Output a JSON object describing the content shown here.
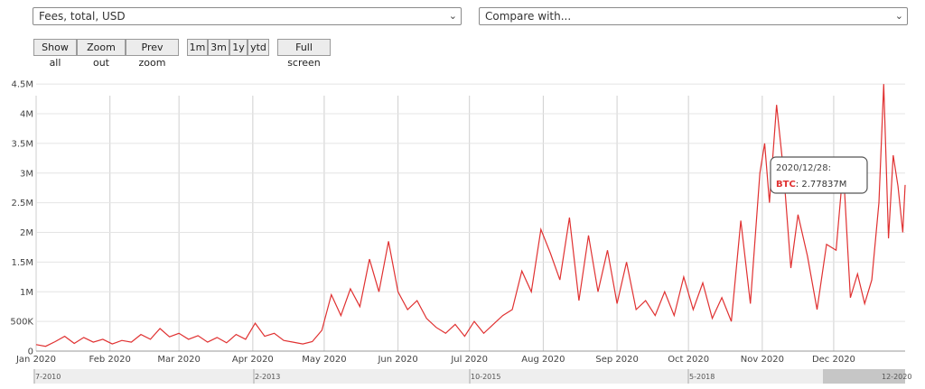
{
  "controls": {
    "metric_select": "Fees, total, USD",
    "compare_select": "Compare with...",
    "buttons": [
      "Show all",
      "Zoom out",
      "Prev zoom",
      "1m",
      "3m",
      "1y",
      "ytd",
      "Full screen"
    ]
  },
  "chart_data": {
    "type": "line",
    "title": "",
    "xlabel": "",
    "ylabel": "",
    "x_start": "2020-01-01",
    "x_end": "2020-12-31",
    "x_ticks": [
      "Jan 2020",
      "Feb 2020",
      "Mar 2020",
      "Apr 2020",
      "May 2020",
      "Jun 2020",
      "Jul 2020",
      "Aug 2020",
      "Sep 2020",
      "Oct 2020",
      "Nov 2020",
      "Dec 2020"
    ],
    "y_ticks": [
      "0",
      "500K",
      "1M",
      "1.5M",
      "2M",
      "2.5M",
      "3M",
      "3.5M",
      "4M",
      "4.5M"
    ],
    "ylim": [
      0,
      4700000
    ],
    "grid": true,
    "series": [
      {
        "name": "BTC",
        "color": "#e03131",
        "points": [
          [
            "2020-01-01",
            110000
          ],
          [
            "2020-01-05",
            80000
          ],
          [
            "2020-01-09",
            160000
          ],
          [
            "2020-01-13",
            250000
          ],
          [
            "2020-01-17",
            130000
          ],
          [
            "2020-01-21",
            230000
          ],
          [
            "2020-01-25",
            150000
          ],
          [
            "2020-01-29",
            200000
          ],
          [
            "2020-02-02",
            120000
          ],
          [
            "2020-02-06",
            180000
          ],
          [
            "2020-02-10",
            150000
          ],
          [
            "2020-02-14",
            280000
          ],
          [
            "2020-02-18",
            200000
          ],
          [
            "2020-02-22",
            380000
          ],
          [
            "2020-02-26",
            240000
          ],
          [
            "2020-03-01",
            300000
          ],
          [
            "2020-03-05",
            200000
          ],
          [
            "2020-03-09",
            260000
          ],
          [
            "2020-03-13",
            150000
          ],
          [
            "2020-03-17",
            230000
          ],
          [
            "2020-03-21",
            140000
          ],
          [
            "2020-03-25",
            280000
          ],
          [
            "2020-03-29",
            200000
          ],
          [
            "2020-04-02",
            470000
          ],
          [
            "2020-04-06",
            250000
          ],
          [
            "2020-04-10",
            300000
          ],
          [
            "2020-04-14",
            180000
          ],
          [
            "2020-04-18",
            150000
          ],
          [
            "2020-04-22",
            120000
          ],
          [
            "2020-04-26",
            160000
          ],
          [
            "2020-04-30",
            350000
          ],
          [
            "2020-05-04",
            950000
          ],
          [
            "2020-05-08",
            600000
          ],
          [
            "2020-05-12",
            1050000
          ],
          [
            "2020-05-16",
            750000
          ],
          [
            "2020-05-20",
            1550000
          ],
          [
            "2020-05-24",
            1000000
          ],
          [
            "2020-05-28",
            1850000
          ],
          [
            "2020-06-01",
            1000000
          ],
          [
            "2020-06-05",
            700000
          ],
          [
            "2020-06-09",
            850000
          ],
          [
            "2020-06-13",
            550000
          ],
          [
            "2020-06-17",
            400000
          ],
          [
            "2020-06-21",
            300000
          ],
          [
            "2020-06-25",
            450000
          ],
          [
            "2020-06-29",
            250000
          ],
          [
            "2020-07-03",
            500000
          ],
          [
            "2020-07-07",
            300000
          ],
          [
            "2020-07-11",
            450000
          ],
          [
            "2020-07-15",
            600000
          ],
          [
            "2020-07-19",
            700000
          ],
          [
            "2020-07-23",
            1350000
          ],
          [
            "2020-07-27",
            1000000
          ],
          [
            "2020-07-31",
            2050000
          ],
          [
            "2020-08-04",
            1650000
          ],
          [
            "2020-08-08",
            1200000
          ],
          [
            "2020-08-12",
            2250000
          ],
          [
            "2020-08-16",
            850000
          ],
          [
            "2020-08-20",
            1950000
          ],
          [
            "2020-08-24",
            1000000
          ],
          [
            "2020-08-28",
            1700000
          ],
          [
            "2020-09-01",
            800000
          ],
          [
            "2020-09-05",
            1500000
          ],
          [
            "2020-09-09",
            700000
          ],
          [
            "2020-09-13",
            850000
          ],
          [
            "2020-09-17",
            600000
          ],
          [
            "2020-09-21",
            1000000
          ],
          [
            "2020-09-25",
            600000
          ],
          [
            "2020-09-29",
            1250000
          ],
          [
            "2020-10-03",
            700000
          ],
          [
            "2020-10-07",
            1150000
          ],
          [
            "2020-10-11",
            550000
          ],
          [
            "2020-10-15",
            900000
          ],
          [
            "2020-10-19",
            500000
          ],
          [
            "2020-10-23",
            2200000
          ],
          [
            "2020-10-27",
            800000
          ],
          [
            "2020-10-31",
            3000000
          ],
          [
            "2020-11-02",
            3500000
          ],
          [
            "2020-11-04",
            2500000
          ],
          [
            "2020-11-07",
            4150000
          ],
          [
            "2020-11-10",
            3000000
          ],
          [
            "2020-11-13",
            1400000
          ],
          [
            "2020-11-16",
            2300000
          ],
          [
            "2020-11-20",
            1600000
          ],
          [
            "2020-11-24",
            700000
          ],
          [
            "2020-11-28",
            1800000
          ],
          [
            "2020-12-02",
            1700000
          ],
          [
            "2020-12-05",
            3100000
          ],
          [
            "2020-12-08",
            900000
          ],
          [
            "2020-12-11",
            1300000
          ],
          [
            "2020-12-14",
            800000
          ],
          [
            "2020-12-17",
            1200000
          ],
          [
            "2020-12-20",
            2500000
          ],
          [
            "2020-12-22",
            4500000
          ],
          [
            "2020-12-24",
            1900000
          ],
          [
            "2020-12-26",
            3300000
          ],
          [
            "2020-12-28",
            2778370
          ],
          [
            "2020-12-30",
            2000000
          ],
          [
            "2020-12-31",
            2800000
          ]
        ]
      }
    ],
    "navigator": {
      "labels": [
        "7-2010",
        "2-2013",
        "10-2015",
        "5-2018",
        "12-2020"
      ]
    },
    "tooltip": {
      "date": "2020/12/28:",
      "series": "BTC",
      "value": ": 2.77837M"
    }
  }
}
